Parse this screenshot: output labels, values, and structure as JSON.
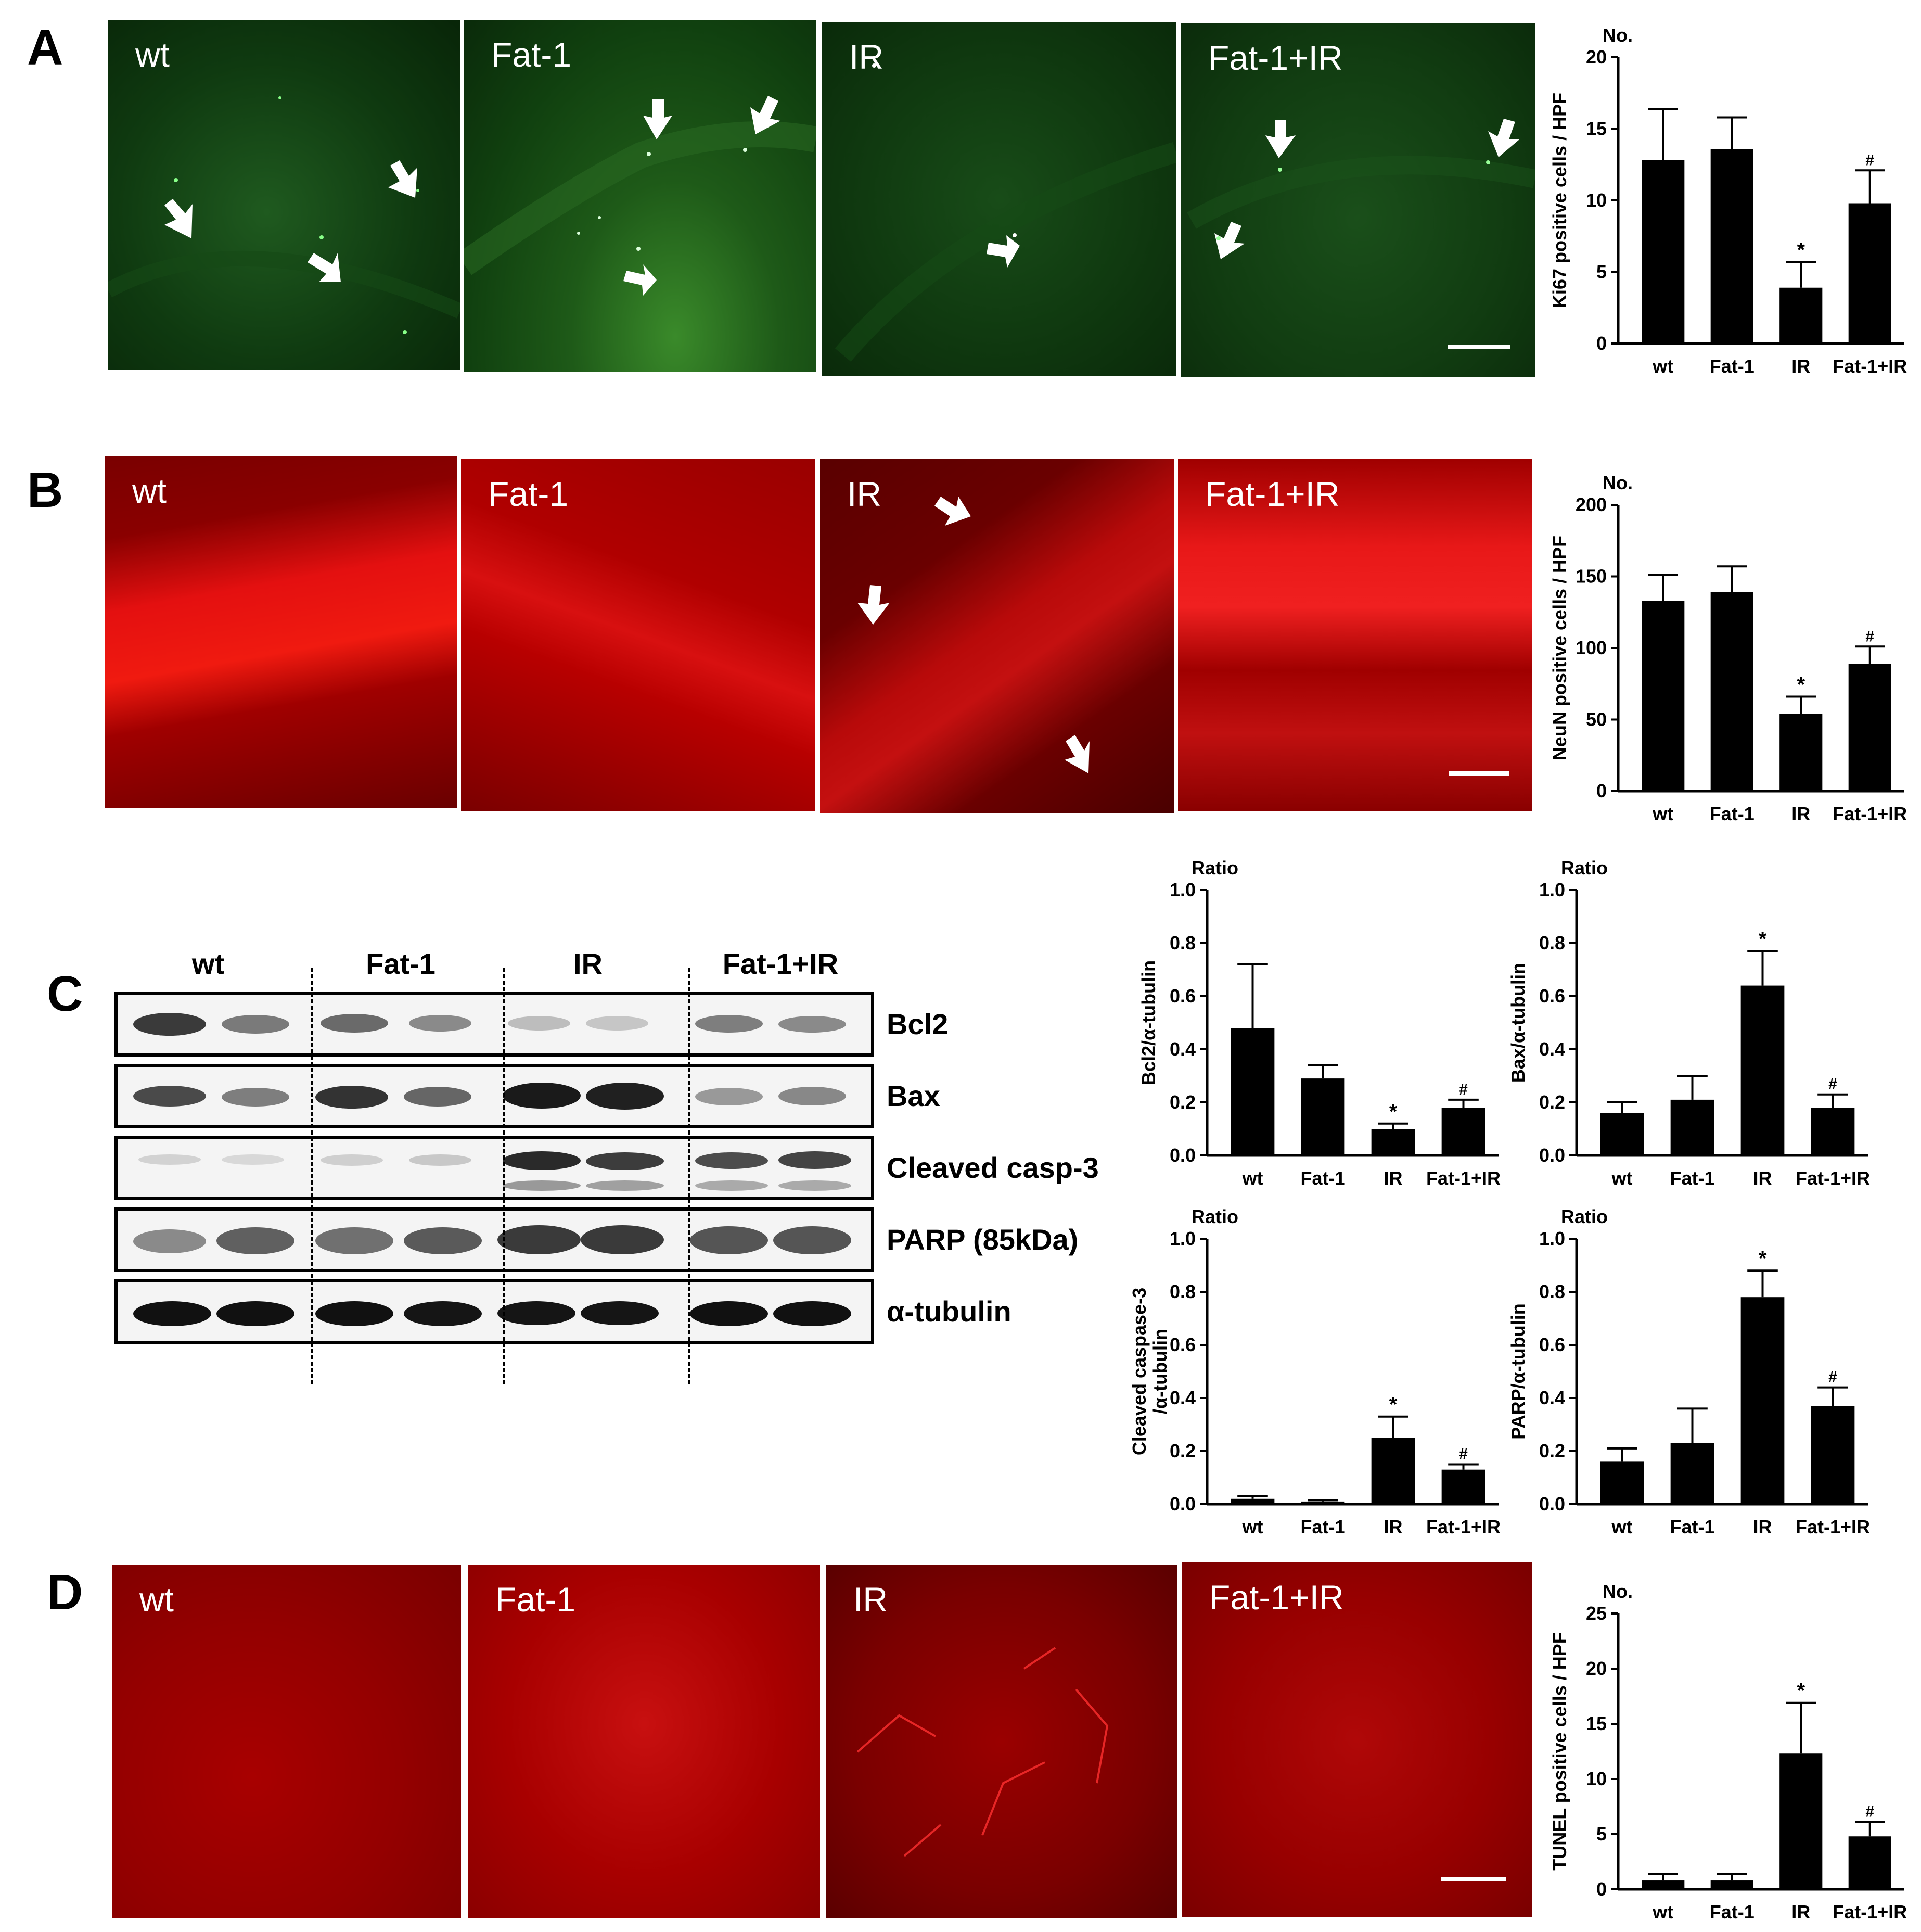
{
  "figure": {
    "panels": {
      "A": {
        "letter": "A",
        "images": [
          {
            "label": "wt"
          },
          {
            "label": "Fat-1"
          },
          {
            "label": "IR"
          },
          {
            "label": "Fat-1+IR"
          }
        ],
        "stain_color": "#0d3a0d"
      },
      "B": {
        "letter": "B",
        "images": [
          {
            "label": "wt"
          },
          {
            "label": "Fat-1"
          },
          {
            "label": "IR"
          },
          {
            "label": "Fat-1+IR"
          }
        ],
        "stain_color": "#b30000"
      },
      "C": {
        "letter": "C",
        "lanes": [
          "wt",
          "Fat-1",
          "IR",
          "Fat-1+IR"
        ],
        "blots": [
          {
            "label": "Bcl2"
          },
          {
            "label": "Bax"
          },
          {
            "label": "Cleaved casp-3"
          },
          {
            "label": "PARP (85kDa)"
          },
          {
            "label": "α-tubulin"
          }
        ]
      },
      "D": {
        "letter": "D",
        "images": [
          {
            "label": "wt"
          },
          {
            "label": "Fat-1"
          },
          {
            "label": "IR"
          },
          {
            "label": "Fat-1+IR"
          }
        ],
        "stain_color": "#9e0000"
      }
    }
  },
  "chart_data": [
    {
      "id": "ki67",
      "type": "bar",
      "categories": [
        "wt",
        "Fat-1",
        "IR",
        "Fat-1+IR"
      ],
      "values": [
        12.8,
        13.6,
        3.9,
        9.8
      ],
      "errors": [
        3.6,
        2.2,
        1.8,
        2.3
      ],
      "annotations": [
        "",
        "",
        "*",
        "#"
      ],
      "ylabel": "Ki67 positive cells / HPF",
      "unit_label": "No.",
      "ylim": [
        0,
        20
      ],
      "yticks": [
        "0",
        "5",
        "10",
        "15",
        "20"
      ]
    },
    {
      "id": "neun",
      "type": "bar",
      "categories": [
        "wt",
        "Fat-1",
        "IR",
        "Fat-1+IR"
      ],
      "values": [
        133,
        139,
        54,
        89
      ],
      "errors": [
        18,
        18,
        12,
        12
      ],
      "annotations": [
        "",
        "",
        "*",
        "#"
      ],
      "ylabel": "NeuN positive cells / HPF",
      "unit_label": "No.",
      "ylim": [
        0,
        200
      ],
      "yticks": [
        "0",
        "50",
        "100",
        "150",
        "200"
      ]
    },
    {
      "id": "bcl2",
      "type": "bar",
      "categories": [
        "wt",
        "Fat-1",
        "IR",
        "Fat-1+IR"
      ],
      "values": [
        0.48,
        0.29,
        0.1,
        0.18
      ],
      "errors": [
        0.24,
        0.05,
        0.02,
        0.03
      ],
      "annotations": [
        "",
        "",
        "*",
        "#"
      ],
      "ylabel": "Bcl2/α-tubulin",
      "unit_label": "Ratio",
      "ylim": [
        0,
        1.0
      ],
      "yticks": [
        "0.0",
        "0.2",
        "0.4",
        "0.6",
        "0.8",
        "1.0"
      ]
    },
    {
      "id": "bax",
      "type": "bar",
      "categories": [
        "wt",
        "Fat-1",
        "IR",
        "Fat-1+IR"
      ],
      "values": [
        0.16,
        0.21,
        0.64,
        0.18
      ],
      "errors": [
        0.04,
        0.09,
        0.13,
        0.05
      ],
      "annotations": [
        "",
        "",
        "*",
        "#"
      ],
      "ylabel": "Bax/α-tubulin",
      "unit_label": "Ratio",
      "ylim": [
        0,
        1.0
      ],
      "yticks": [
        "0.0",
        "0.2",
        "0.4",
        "0.6",
        "0.8",
        "1.0"
      ]
    },
    {
      "id": "casp3",
      "type": "bar",
      "categories": [
        "wt",
        "Fat-1",
        "IR",
        "Fat-1+IR"
      ],
      "values": [
        0.02,
        0.01,
        0.25,
        0.13
      ],
      "errors": [
        0.01,
        0.005,
        0.08,
        0.02
      ],
      "annotations": [
        "",
        "",
        "*",
        "#"
      ],
      "ylabel": "Cleaved caspase-3",
      "ylabel2": "/α-tubulin",
      "unit_label": "Ratio",
      "ylim": [
        0,
        1.0
      ],
      "yticks": [
        "0.0",
        "0.2",
        "0.4",
        "0.6",
        "0.8",
        "1.0"
      ]
    },
    {
      "id": "parp",
      "type": "bar",
      "categories": [
        "wt",
        "Fat-1",
        "IR",
        "Fat-1+IR"
      ],
      "values": [
        0.16,
        0.23,
        0.78,
        0.37
      ],
      "errors": [
        0.05,
        0.13,
        0.1,
        0.07
      ],
      "annotations": [
        "",
        "",
        "*",
        "#"
      ],
      "ylabel": "PARP/α-tubulin",
      "unit_label": "Ratio",
      "ylim": [
        0,
        1.0
      ],
      "yticks": [
        "0.0",
        "0.2",
        "0.4",
        "0.6",
        "0.8",
        "1.0"
      ]
    },
    {
      "id": "tunel",
      "type": "bar",
      "categories": [
        "wt",
        "Fat-1",
        "IR",
        "Fat-1+IR"
      ],
      "values": [
        0.8,
        0.8,
        12.3,
        4.8
      ],
      "errors": [
        0.6,
        0.6,
        4.6,
        1.3
      ],
      "annotations": [
        "",
        "",
        "*",
        "#"
      ],
      "ylabel": "TUNEL positive cells / HPF",
      "unit_label": "No.",
      "ylim": [
        0,
        25
      ],
      "yticks": [
        "0",
        "5",
        "10",
        "15",
        "20",
        "25"
      ]
    }
  ]
}
